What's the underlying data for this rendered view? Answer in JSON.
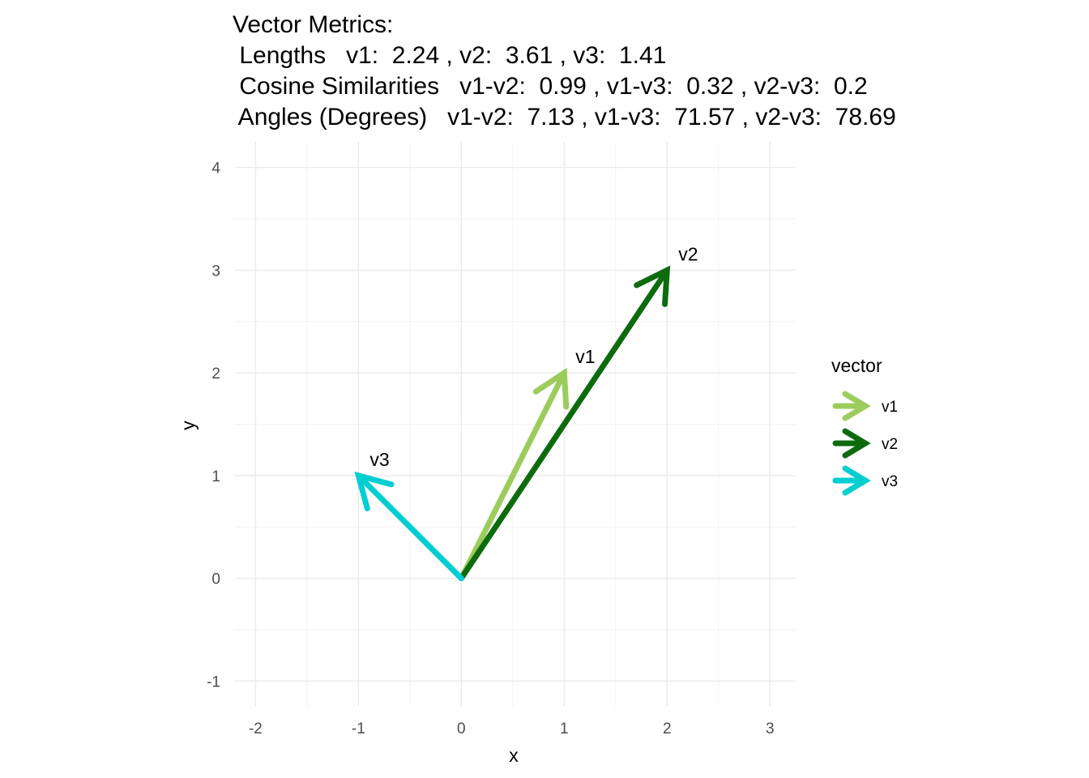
{
  "chart_data": {
    "type": "vector",
    "title_lines": [
      "Vector Metrics:",
      " Lengths   v1:  2.24 , v2:  3.61 , v3:  1.41",
      " Cosine Similarities   v1-v2:  0.99 , v1-v3:  0.32 , v2-v3:  0.2",
      " Angles (Degrees)   v1-v2:  7.13 , v1-v3:  71.57 , v2-v3:  78.69"
    ],
    "xlabel": "x",
    "ylabel": "y",
    "xlim": [
      -2.2,
      3.25
    ],
    "ylim": [
      -1.25,
      4.25
    ],
    "x_ticks": [
      -2,
      -1,
      0,
      1,
      2,
      3
    ],
    "y_ticks": [
      -1,
      0,
      1,
      2,
      3,
      4
    ],
    "x_tick_labels": [
      "-2",
      "-1",
      "0",
      "1",
      "2",
      "3"
    ],
    "y_tick_labels": [
      "-1",
      "0",
      "1",
      "2",
      "3",
      "4"
    ],
    "grid": true,
    "legend": {
      "title": "vector",
      "placement": "right"
    },
    "series": [
      {
        "name": "v1",
        "x0": 0,
        "y0": 0,
        "x": 1,
        "y": 2,
        "color": "#9ccc5c"
      },
      {
        "name": "v2",
        "x0": 0,
        "y0": 0,
        "x": 2,
        "y": 3,
        "color": "#0d6b0d"
      },
      {
        "name": "v3",
        "x0": 0,
        "y0": 0,
        "x": -1,
        "y": 1,
        "color": "#00ced1"
      }
    ]
  }
}
